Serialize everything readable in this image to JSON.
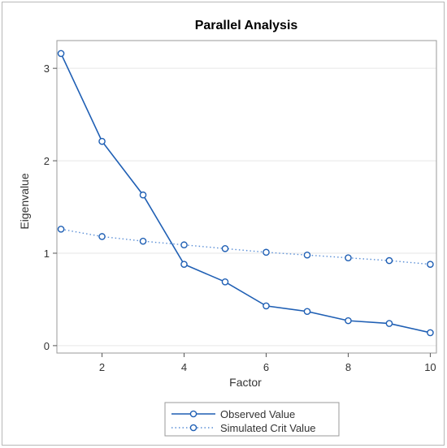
{
  "chart_data": {
    "type": "line",
    "title": "Parallel Analysis",
    "xlabel": "Factor",
    "ylabel": "Eigenvalue",
    "x": [
      1,
      2,
      3,
      4,
      5,
      6,
      7,
      8,
      9,
      10
    ],
    "xlim": [
      0.9,
      10.15
    ],
    "ylim": [
      -0.08,
      3.3
    ],
    "xticks": [
      2,
      4,
      6,
      8,
      10
    ],
    "yticks": [
      0,
      1,
      2,
      3
    ],
    "grid": "horizontal",
    "legend_position": "bottom",
    "series": [
      {
        "name": "Observed Value",
        "style": "solid",
        "color": "#1f5fb4",
        "values": [
          3.16,
          2.21,
          1.63,
          0.88,
          0.69,
          0.43,
          0.37,
          0.27,
          0.24,
          0.14
        ]
      },
      {
        "name": "Simulated Crit Value",
        "style": "dotted",
        "color": "#5b8fd6",
        "values": [
          1.26,
          1.18,
          1.13,
          1.09,
          1.05,
          1.01,
          0.98,
          0.95,
          0.92,
          0.88
        ]
      }
    ]
  }
}
